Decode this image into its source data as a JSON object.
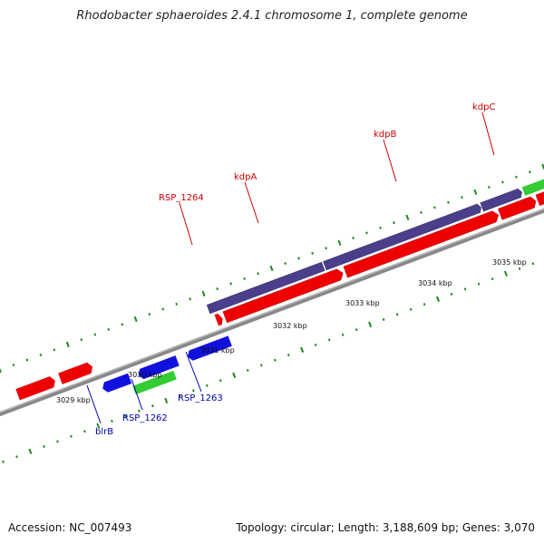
{
  "title": "Rhodobacter sphaeroides 2.4.1 chromosome 1, complete genome",
  "footer": {
    "accession": "Accession: NC_007493",
    "summary": "Topology: circular; Length: 3,188,609 bp; Genes: 3,070"
  },
  "colors": {
    "forward_gene": "#ee0000",
    "reverse_gene": "#1111dd",
    "rna_gene": "#33cc33",
    "highlighted_gene": "#4b3f8c",
    "backbone": "#888888",
    "tick": "#1a8a1a",
    "label_forward": "#cc0000",
    "label_reverse": "#0000aa"
  },
  "scale_labels": [
    "3029 kbp",
    "3030 kbp",
    "3031 kbp",
    "3032 kbp",
    "3033 kbp",
    "3034 kbp",
    "3035 kbp"
  ],
  "gene_labels": {
    "kdpC": "kdpC",
    "kdpB": "kdpB",
    "kdpA": "kdpA",
    "RSP_1264": "RSP_1264",
    "RSP_1263": "RSP_1263",
    "RSP_1262": "RSP_1262",
    "blrB": "blrB"
  }
}
